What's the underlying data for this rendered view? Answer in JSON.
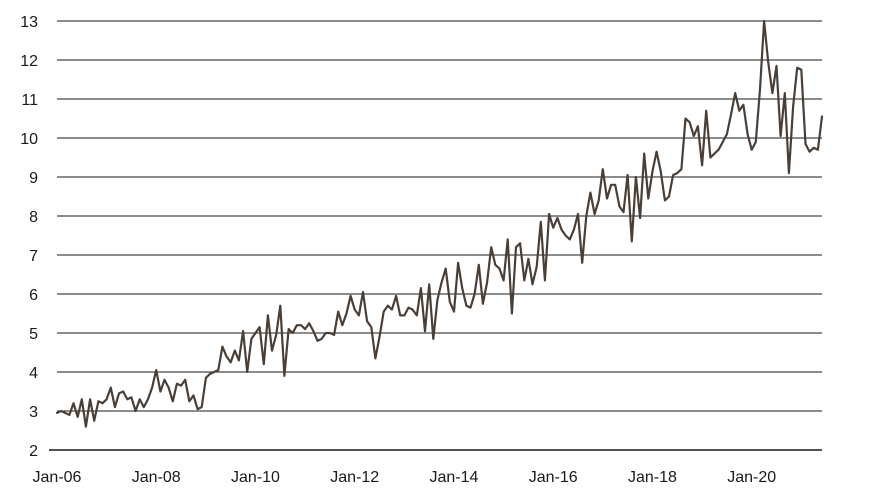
{
  "chart_data": {
    "type": "line",
    "title": "",
    "xlabel": "",
    "ylabel": "",
    "grid": "horizontal",
    "legend": "none",
    "ylim": [
      2,
      13
    ],
    "yticks": [
      "2",
      "3",
      "4",
      "5",
      "6",
      "7",
      "8",
      "9",
      "10",
      "11",
      "12",
      "13"
    ],
    "x_range": [
      "2006-01",
      "2021-06"
    ],
    "xticks": [
      {
        "label": "Jan-06",
        "date": "2006-01"
      },
      {
        "label": "Jan-08",
        "date": "2008-01"
      },
      {
        "label": "Jan-10",
        "date": "2010-01"
      },
      {
        "label": "Jan-12",
        "date": "2012-01"
      },
      {
        "label": "Jan-14",
        "date": "2014-01"
      },
      {
        "label": "Jan-16",
        "date": "2016-01"
      },
      {
        "label": "Jan-18",
        "date": "2018-01"
      },
      {
        "label": "Jan-20",
        "date": "2020-01"
      }
    ],
    "colors": {
      "line": "#4a3f37",
      "grid": "#1a1a1a",
      "text": "#1a1a1a"
    },
    "series": [
      {
        "x": [
          "2006-01",
          "2006-02",
          "2006-04",
          "2006-05",
          "2006-06",
          "2006-07",
          "2006-08",
          "2006-09",
          "2006-10",
          "2006-11",
          "2006-12",
          "2007-01",
          "2007-02",
          "2007-03",
          "2007-04",
          "2007-05",
          "2007-06",
          "2007-07",
          "2007-08",
          "2007-09",
          "2007-10",
          "2007-11",
          "2007-12",
          "2008-01",
          "2008-02",
          "2008-03",
          "2008-04",
          "2008-05",
          "2008-06",
          "2008-07",
          "2008-08",
          "2008-09",
          "2008-10",
          "2008-11",
          "2008-12",
          "2009-01",
          "2009-02",
          "2009-03",
          "2009-04",
          "2009-05",
          "2009-06",
          "2009-07",
          "2009-08",
          "2009-09",
          "2009-10",
          "2009-11",
          "2009-12",
          "2010-01",
          "2010-02",
          "2010-03",
          "2010-04",
          "2010-05",
          "2010-06",
          "2010-07",
          "2010-08",
          "2010-09",
          "2010-10",
          "2010-11",
          "2010-12",
          "2011-01",
          "2011-02",
          "2011-03",
          "2011-04",
          "2011-05",
          "2011-06",
          "2011-07",
          "2011-08",
          "2011-09",
          "2011-10",
          "2011-11",
          "2011-12",
          "2012-01",
          "2012-02",
          "2012-03",
          "2012-04",
          "2012-05",
          "2012-06",
          "2012-07",
          "2012-08",
          "2012-09",
          "2012-10",
          "2012-11",
          "2012-12",
          "2013-01",
          "2013-02",
          "2013-03",
          "2013-04",
          "2013-05",
          "2013-06",
          "2013-07",
          "2013-08",
          "2013-09",
          "2013-10",
          "2013-11",
          "2013-12",
          "2014-01",
          "2014-02",
          "2014-03",
          "2014-04",
          "2014-05",
          "2014-06",
          "2014-07",
          "2014-08",
          "2014-09",
          "2014-10",
          "2014-11",
          "2014-12",
          "2015-01",
          "2015-02",
          "2015-03",
          "2015-04",
          "2015-05",
          "2015-06",
          "2015-07",
          "2015-08",
          "2015-09",
          "2015-10",
          "2015-11",
          "2015-12",
          "2016-01",
          "2016-02",
          "2016-03",
          "2016-04",
          "2016-05",
          "2016-06",
          "2016-07",
          "2016-08",
          "2016-09",
          "2016-10",
          "2016-11",
          "2016-12",
          "2017-01",
          "2017-02",
          "2017-03",
          "2017-04",
          "2017-05",
          "2017-06",
          "2017-07",
          "2017-08",
          "2017-09",
          "2017-10",
          "2017-11",
          "2017-12",
          "2018-01",
          "2018-02",
          "2018-03",
          "2018-04",
          "2018-05",
          "2018-06",
          "2018-07",
          "2018-08",
          "2018-09",
          "2018-10",
          "2018-11",
          "2018-12",
          "2019-01",
          "2019-02",
          "2019-03",
          "2019-04",
          "2019-05",
          "2019-06",
          "2019-07",
          "2019-08",
          "2019-09",
          "2019-10",
          "2019-11",
          "2019-12",
          "2020-01",
          "2020-02",
          "2020-03",
          "2020-04",
          "2020-05",
          "2020-06",
          "2020-07",
          "2020-08",
          "2020-09",
          "2020-10",
          "2020-11",
          "2020-12",
          "2021-01",
          "2021-02",
          "2021-03",
          "2021-04",
          "2021-05",
          "2021-06"
        ],
        "y": [
          2.95,
          3.0,
          2.9,
          3.2,
          2.85,
          3.3,
          2.6,
          3.3,
          2.75,
          3.25,
          3.2,
          3.3,
          3.6,
          3.1,
          3.45,
          3.5,
          3.3,
          3.35,
          3.0,
          3.3,
          3.1,
          3.3,
          3.6,
          4.05,
          3.5,
          3.8,
          3.6,
          3.25,
          3.7,
          3.65,
          3.8,
          3.25,
          3.4,
          3.05,
          3.1,
          3.85,
          3.95,
          4.0,
          4.05,
          4.65,
          4.4,
          4.25,
          4.55,
          4.3,
          5.05,
          4.0,
          4.85,
          5.0,
          5.15,
          4.2,
          5.45,
          4.55,
          4.95,
          5.7,
          3.9,
          5.1,
          5.0,
          5.2,
          5.2,
          5.1,
          5.25,
          5.05,
          4.8,
          4.85,
          5.0,
          5.0,
          4.95,
          5.55,
          5.2,
          5.5,
          5.95,
          5.6,
          5.45,
          6.05,
          5.3,
          5.15,
          4.35,
          4.9,
          5.55,
          5.7,
          5.6,
          5.95,
          5.45,
          5.45,
          5.65,
          5.6,
          5.45,
          6.15,
          5.05,
          6.25,
          4.85,
          5.85,
          6.3,
          6.65,
          5.8,
          5.55,
          6.8,
          6.15,
          5.7,
          5.65,
          6.0,
          6.75,
          5.75,
          6.3,
          7.2,
          6.75,
          6.65,
          6.35,
          7.4,
          5.5,
          7.2,
          7.3,
          6.35,
          6.9,
          6.25,
          6.7,
          7.85,
          6.35,
          8.05,
          7.7,
          7.95,
          7.65,
          7.5,
          7.4,
          7.65,
          8.05,
          6.8,
          8.0,
          8.6,
          8.05,
          8.4,
          9.2,
          8.45,
          8.8,
          8.8,
          8.25,
          8.1,
          9.05,
          7.35,
          9.0,
          7.95,
          9.6,
          8.45,
          9.15,
          9.65,
          9.15,
          8.4,
          8.5,
          9.05,
          9.1,
          9.2,
          10.5,
          10.4,
          10.05,
          10.3,
          9.3,
          10.7,
          9.5,
          9.6,
          9.7,
          9.9,
          10.1,
          10.6,
          11.15,
          10.7,
          10.85,
          10.1,
          9.7,
          9.9,
          11.25,
          13.0,
          11.95,
          11.15,
          11.85,
          10.05,
          11.15,
          9.1,
          10.8,
          11.8,
          11.75,
          9.85,
          9.65,
          9.75,
          9.7,
          10.55
        ]
      }
    ]
  }
}
